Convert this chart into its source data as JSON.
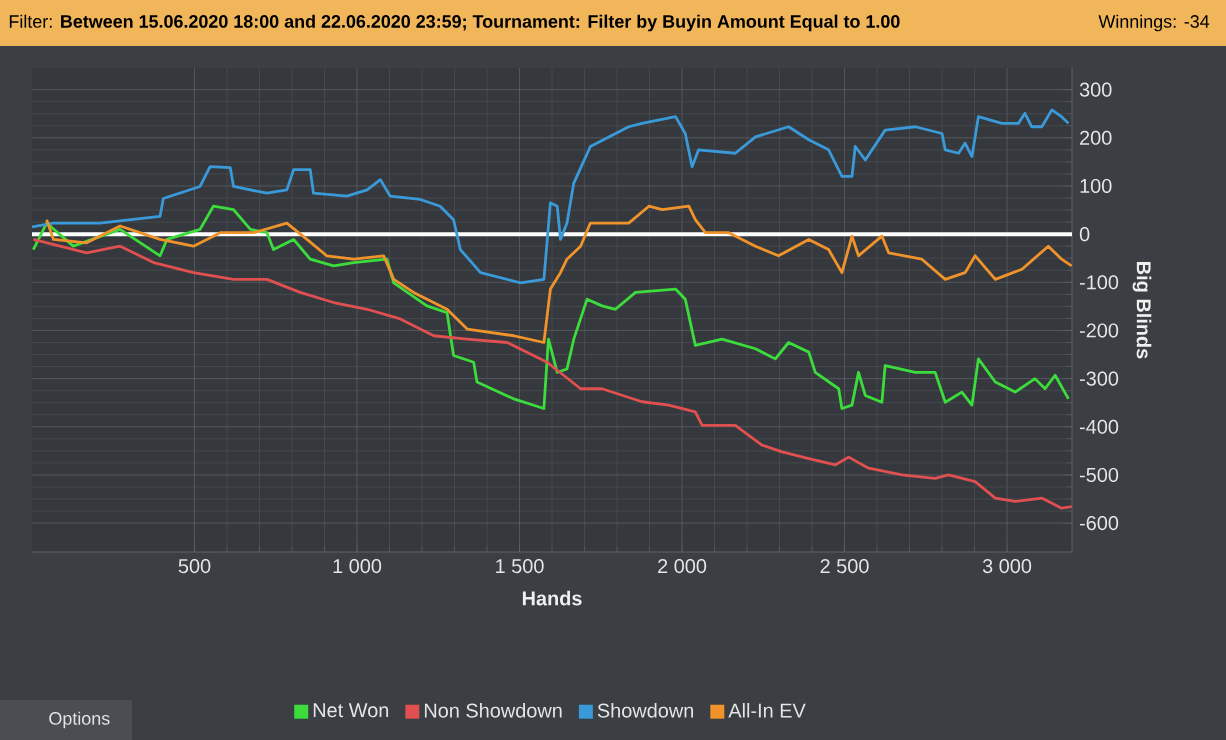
{
  "chart_data": {
    "type": "line",
    "title": "Filter: **Between 15.06.2020 18:00 and 22.06.2020 23:59; Tournament: Filter by Buyin Amount Equal to 1.00**",
    "subtitle": "Winnings: -34",
    "xlabel": "Hands",
    "ylabel": "Big Blinds",
    "annotations": [
      "Options"
    ],
    "xlim": [
      0,
      3200
    ],
    "ylim": [
      -660,
      345
    ],
    "xticks": [
      500,
      {
        "value": 1000,
        "label": "1 000"
      },
      {
        "value": 1500,
        "label": "1 500"
      },
      {
        "value": 2000,
        "label": "2 000"
      },
      {
        "value": 2500,
        "label": "2 500"
      },
      {
        "value": 3000,
        "label": "3 000"
      }
    ],
    "yticks": [
      -600,
      -500,
      -400,
      -300,
      -200,
      -100,
      0,
      100,
      200,
      300
    ],
    "grid": true,
    "legend": "bottom",
    "ref_lines": [
      {
        "axis": "y",
        "value": 0,
        "color": "#ffffff"
      }
    ],
    "series": [
      {
        "name": "Net Won",
        "color": "#3cdc3c",
        "x": [
          4,
          45,
          127,
          271,
          394,
          415,
          517,
          558,
          620,
          672,
          723,
          743,
          805,
          856,
          928,
          990,
          1092,
          1113,
          1215,
          1277,
          1297,
          1359,
          1369,
          1482,
          1575,
          1589,
          1616,
          1646,
          1667,
          1708,
          1754,
          1795,
          1857,
          1980,
          2010,
          2041,
          2123,
          2226,
          2287,
          2328,
          2390,
          2410,
          2482,
          2492,
          2523,
          2543,
          2564,
          2615,
          2625,
          2718,
          2779,
          2810,
          2861,
          2892,
          2912,
          2964,
          3025,
          3086,
          3117,
          3148,
          3189
        ],
        "values": [
          -32,
          23,
          -25,
          10,
          -45,
          -11,
          10,
          58,
          51,
          10,
          3,
          -32,
          -11,
          -52,
          -66,
          -59,
          -52,
          -101,
          -149,
          -163,
          -252,
          -266,
          -307,
          -342,
          -362,
          -218,
          -287,
          -280,
          -218,
          -135,
          -149,
          -156,
          -121,
          -114,
          -135,
          -231,
          -218,
          -238,
          -259,
          -225,
          -245,
          -287,
          -321,
          -362,
          -355,
          -287,
          -335,
          -349,
          -273,
          -287,
          -287,
          -349,
          -328,
          -355,
          -259,
          -307,
          -328,
          -300,
          -321,
          -293,
          -342
        ]
      },
      {
        "name": "Non Showdown",
        "color": "#e05050",
        "x": [
          4,
          86,
          168,
          271,
          374,
          497,
          620,
          723,
          825,
          928,
          1031,
          1133,
          1236,
          1339,
          1462,
          1585,
          1688,
          1754,
          1877,
          1959,
          2041,
          2062,
          2164,
          2246,
          2308,
          2390,
          2472,
          2513,
          2574,
          2677,
          2779,
          2820,
          2902,
          2964,
          3025,
          3107,
          3168,
          3199
        ],
        "values": [
          -11,
          -25,
          -39,
          -25,
          -59,
          -80,
          -94,
          -94,
          -121,
          -142,
          -156,
          -176,
          -211,
          -218,
          -225,
          -266,
          -321,
          -321,
          -348,
          -355,
          -369,
          -397,
          -397,
          -438,
          -452,
          -466,
          -479,
          -463,
          -486,
          -500,
          -507,
          -500,
          -514,
          -548,
          -555,
          -548,
          -569,
          -566
        ]
      },
      {
        "name": "Showdown",
        "color": "#3a9ad9",
        "x": [
          0,
          66,
          209,
          394,
          404,
          517,
          548,
          610,
          620,
          723,
          784,
          805,
          856,
          866,
          969,
          1031,
          1072,
          1102,
          1195,
          1256,
          1297,
          1318,
          1380,
          1503,
          1575,
          1595,
          1616,
          1626,
          1646,
          1667,
          1718,
          1836,
          1877,
          1980,
          2010,
          2031,
          2051,
          2164,
          2226,
          2328,
          2390,
          2451,
          2492,
          2523,
          2533,
          2564,
          2625,
          2718,
          2800,
          2810,
          2851,
          2871,
          2892,
          2912,
          2984,
          3035,
          3055,
          3076,
          3107,
          3138,
          3168,
          3189
        ],
        "values": [
          15,
          23,
          23,
          37,
          74,
          99,
          140,
          138,
          99,
          85,
          92,
          134,
          134,
          85,
          79,
          92,
          113,
          79,
          72,
          58,
          30,
          -32,
          -80,
          -101,
          -94,
          65,
          58,
          -11,
          23,
          106,
          182,
          223,
          230,
          244,
          209,
          140,
          175,
          168,
          202,
          223,
          196,
          175,
          120,
          120,
          182,
          154,
          216,
          223,
          209,
          175,
          168,
          189,
          161,
          244,
          230,
          230,
          251,
          223,
          223,
          258,
          244,
          230
        ]
      },
      {
        "name": "All-In EV",
        "color": "#f0932b",
        "x": [
          45,
          66,
          168,
          271,
          394,
          497,
          579,
          682,
          784,
          846,
          907,
          990,
          1082,
          1113,
          1174,
          1277,
          1339,
          1482,
          1575,
          1595,
          1626,
          1646,
          1688,
          1718,
          1836,
          1898,
          1939,
          2021,
          2041,
          2072,
          2144,
          2226,
          2297,
          2390,
          2451,
          2492,
          2523,
          2543,
          2615,
          2636,
          2738,
          2810,
          2871,
          2902,
          2964,
          3046,
          3127,
          3168,
          3199
        ],
        "values": [
          30,
          -11,
          -18,
          17,
          -11,
          -25,
          3,
          3,
          23,
          -11,
          -45,
          -52,
          -45,
          -94,
          -121,
          -156,
          -197,
          -211,
          -225,
          -114,
          -80,
          -52,
          -25,
          23,
          23,
          58,
          51,
          58,
          30,
          3,
          3,
          -25,
          -45,
          -11,
          -32,
          -80,
          -4,
          -45,
          -4,
          -39,
          -52,
          -94,
          -80,
          -45,
          -94,
          -73,
          -25,
          -52,
          -66
        ]
      }
    ]
  }
}
